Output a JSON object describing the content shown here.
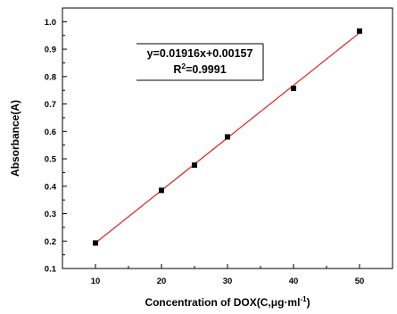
{
  "chart_data": {
    "type": "scatter",
    "xlabel": "Concentration of DOX(C,μg·ml",
    "xlabel_sup": "-1",
    "xlabel_close": ")",
    "ylabel": "Absorbance(A)",
    "xlim": [
      5,
      55
    ],
    "ylim": [
      0.1,
      1.05
    ],
    "xticks": [
      10,
      20,
      30,
      40,
      50
    ],
    "xtick_labels": [
      "10",
      "20",
      "30",
      "40",
      "50"
    ],
    "yticks": [
      0.1,
      0.2,
      0.3,
      0.4,
      0.5,
      0.6,
      0.7,
      0.8,
      0.9,
      1.0
    ],
    "ytick_labels": [
      "0.1",
      "0.2",
      "0.3",
      "0.4",
      "0.5",
      "0.6",
      "0.7",
      "0.8",
      "0.9",
      "1.0"
    ],
    "series": [
      {
        "x": [
          10,
          20,
          25,
          30,
          40,
          50
        ],
        "y": [
          0.193,
          0.385,
          0.477,
          0.58,
          0.757,
          0.966
        ],
        "marker": "square",
        "color": "#000000"
      }
    ],
    "fit": {
      "slope": 0.01916,
      "intercept": 0.00157,
      "x_range": [
        10,
        50
      ],
      "color": "#e02020"
    },
    "annotation": {
      "equation": "y=0.01916x+0.00157",
      "r2_prefix": "R",
      "r2_sup": "2",
      "r2_value": "=0.9991"
    },
    "grid": false
  }
}
